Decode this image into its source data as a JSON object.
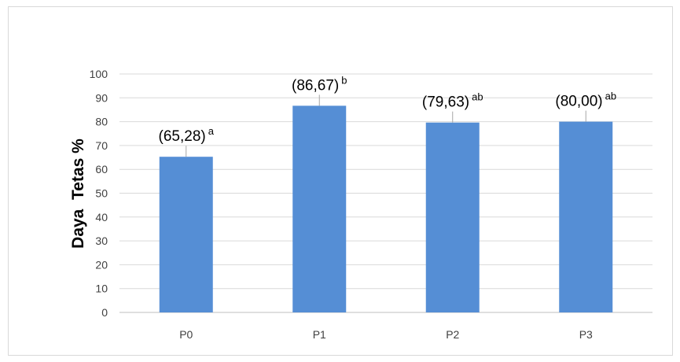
{
  "chart_data": {
    "type": "bar",
    "categories": [
      "P0",
      "P1",
      "P2",
      "P3"
    ],
    "values": [
      65.28,
      86.67,
      79.63,
      80.0
    ],
    "data_labels": [
      "(65,28)",
      "(86,67)",
      "(79,63)",
      "(80,00)"
    ],
    "significance": [
      "a",
      "b",
      "ab",
      "ab"
    ],
    "ylabel": "Daya  Tetas %",
    "ylim": [
      0,
      100
    ],
    "yticks": [
      "0",
      "10",
      "20",
      "30",
      "40",
      "50",
      "60",
      "70",
      "80",
      "90",
      "100"
    ],
    "grid": true,
    "bar_color": "#558ed5",
    "grid_color": "#d9d9d9"
  }
}
